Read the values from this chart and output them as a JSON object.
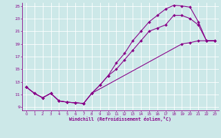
{
  "xlabel": "Windchill (Refroidissement éolien,°C)",
  "bg_color": "#cce8e8",
  "line_color": "#880088",
  "grid_color": "#ffffff",
  "xlim": [
    -0.5,
    23.5
  ],
  "ylim": [
    8.5,
    25.5
  ],
  "xticks": [
    0,
    1,
    2,
    3,
    4,
    5,
    6,
    7,
    8,
    9,
    10,
    11,
    12,
    13,
    14,
    15,
    16,
    17,
    18,
    19,
    20,
    21,
    22,
    23
  ],
  "yticks": [
    9,
    11,
    13,
    15,
    17,
    19,
    21,
    23,
    25
  ],
  "curve1_x": [
    0,
    1,
    2,
    3,
    4,
    5,
    6,
    7,
    8,
    9,
    10,
    11,
    12,
    13,
    14,
    15,
    16,
    17,
    18,
    19,
    20,
    21,
    22,
    23
  ],
  "curve1_y": [
    12.2,
    11.2,
    10.5,
    11.2,
    10.0,
    9.8,
    9.7,
    9.6,
    11.2,
    12.5,
    14.0,
    15.0,
    16.5,
    18.0,
    19.5,
    21.0,
    21.5,
    22.0,
    23.5,
    23.5,
    23.0,
    22.0,
    19.5,
    19.5
  ],
  "curve2_x": [
    0,
    1,
    2,
    3,
    4,
    5,
    6,
    7,
    8,
    9,
    10,
    11,
    12,
    13,
    14,
    15,
    16,
    17,
    18,
    19,
    20,
    21,
    22,
    23
  ],
  "curve2_y": [
    12.2,
    11.2,
    10.5,
    11.2,
    10.0,
    9.8,
    9.7,
    9.6,
    11.2,
    12.5,
    14.0,
    16.0,
    17.5,
    19.5,
    21.0,
    22.5,
    23.5,
    24.5,
    25.1,
    25.0,
    24.8,
    22.5,
    19.5,
    19.5
  ],
  "curve3_x": [
    0,
    1,
    2,
    3,
    4,
    5,
    6,
    7,
    8,
    19,
    20,
    21,
    22,
    23
  ],
  "curve3_y": [
    12.2,
    11.2,
    10.5,
    11.2,
    10.0,
    9.8,
    9.7,
    9.6,
    11.2,
    19.0,
    19.2,
    19.5,
    19.5,
    19.5
  ]
}
